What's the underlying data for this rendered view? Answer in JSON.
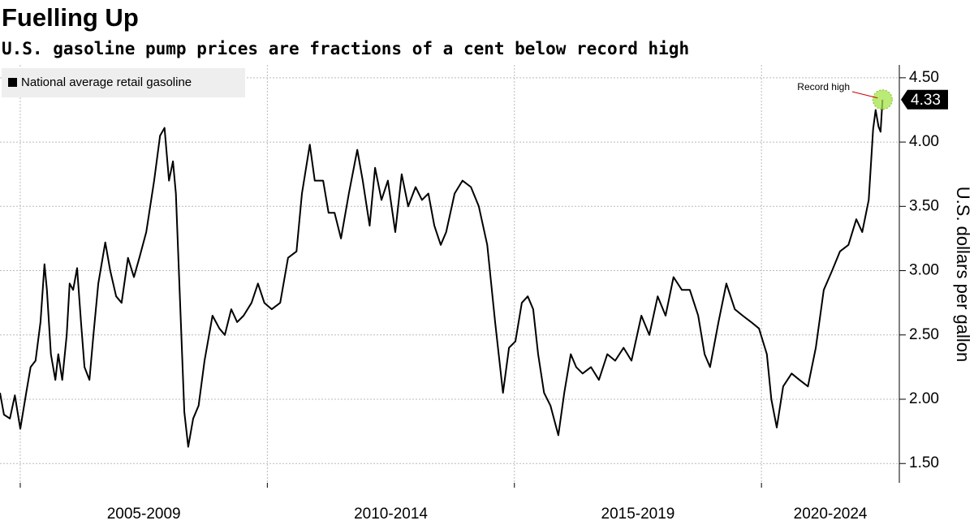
{
  "chart_data": {
    "type": "line",
    "title": "Fuelling Up",
    "subtitle": "U.S. gasoline pump prices are fractions of a cent below record high",
    "y_axis_label": "U.S. dollars per gallon",
    "legend": "top-left",
    "grid": true,
    "annotation": "Record high",
    "last_label": "4.33",
    "xlim": [
      2004.59,
      2022.79
    ],
    "ylim": [
      1.35,
      4.6
    ],
    "yticks": [
      {
        "value": 1.5,
        "label": "1.50"
      },
      {
        "value": 2.0,
        "label": "2.00"
      },
      {
        "value": 2.5,
        "label": "2.50"
      },
      {
        "value": 3.0,
        "label": "3.00"
      },
      {
        "value": 3.5,
        "label": "3.50"
      },
      {
        "value": 4.0,
        "label": "4.00"
      },
      {
        "value": 4.5,
        "label": "4.50"
      }
    ],
    "x_periods": [
      {
        "label": "2005-2009",
        "start": 2005,
        "end": 2010
      },
      {
        "label": "2010-2014",
        "start": 2010,
        "end": 2015
      },
      {
        "label": "2015-2019",
        "start": 2015,
        "end": 2020
      },
      {
        "label": "2020-2024",
        "start": 2020,
        "end": 2025
      }
    ],
    "x": [
      2004.59,
      2004.67,
      2004.79,
      2004.89,
      2005.0,
      2005.12,
      2005.21,
      2005.31,
      2005.41,
      2005.49,
      2005.54,
      2005.62,
      2005.71,
      2005.77,
      2005.85,
      2005.94,
      2006.0,
      2006.07,
      2006.15,
      2006.23,
      2006.3,
      2006.4,
      2006.48,
      2006.58,
      2006.72,
      2006.82,
      2006.94,
      2007.05,
      2007.18,
      2007.3,
      2007.41,
      2007.55,
      2007.71,
      2007.83,
      2007.92,
      2008.01,
      2008.09,
      2008.15,
      2008.24,
      2008.32,
      2008.4,
      2008.5,
      2008.61,
      2008.73,
      2008.89,
      2009.03,
      2009.14,
      2009.27,
      2009.39,
      2009.52,
      2009.68,
      2009.81,
      2009.94,
      2010.09,
      2010.26,
      2010.42,
      2010.59,
      2010.7,
      2010.86,
      2010.96,
      2011.13,
      2011.24,
      2011.36,
      2011.49,
      2011.65,
      2011.82,
      2011.93,
      2012.07,
      2012.18,
      2012.31,
      2012.44,
      2012.59,
      2012.72,
      2012.85,
      2013.0,
      2013.13,
      2013.26,
      2013.38,
      2013.51,
      2013.62,
      2013.79,
      2013.95,
      2014.12,
      2014.28,
      2014.45,
      2014.61,
      2014.77,
      2014.89,
      2015.02,
      2015.15,
      2015.27,
      2015.38,
      2015.48,
      2015.6,
      2015.73,
      2015.89,
      2016.01,
      2016.14,
      2016.25,
      2016.38,
      2016.55,
      2016.71,
      2016.88,
      2017.04,
      2017.21,
      2017.37,
      2017.57,
      2017.73,
      2017.9,
      2018.06,
      2018.22,
      2018.39,
      2018.55,
      2018.72,
      2018.85,
      2018.96,
      2019.13,
      2019.29,
      2019.46,
      2019.62,
      2019.79,
      2019.95,
      2020.11,
      2020.2,
      2020.31,
      2020.44,
      2020.61,
      2020.77,
      2020.94,
      2021.1,
      2021.26,
      2021.43,
      2021.59,
      2021.76,
      2021.92,
      2022.04,
      2022.17,
      2022.26,
      2022.31,
      2022.37,
      2022.41,
      2022.45
    ],
    "series": [
      {
        "name": "National average retail gasoline",
        "color": "#000000",
        "values": [
          2.05,
          1.88,
          1.85,
          2.03,
          1.77,
          2.05,
          2.25,
          2.3,
          2.6,
          3.05,
          2.85,
          2.35,
          2.15,
          2.35,
          2.15,
          2.5,
          2.9,
          2.85,
          3.02,
          2.6,
          2.25,
          2.15,
          2.5,
          2.9,
          3.22,
          3.0,
          2.8,
          2.75,
          3.1,
          2.95,
          3.1,
          3.3,
          3.7,
          4.05,
          4.11,
          3.7,
          3.85,
          3.6,
          2.7,
          1.9,
          1.63,
          1.85,
          1.95,
          2.3,
          2.65,
          2.55,
          2.5,
          2.7,
          2.6,
          2.65,
          2.75,
          2.9,
          2.75,
          2.7,
          2.75,
          3.1,
          3.15,
          3.6,
          3.98,
          3.7,
          3.7,
          3.45,
          3.45,
          3.25,
          3.6,
          3.94,
          3.7,
          3.35,
          3.8,
          3.55,
          3.7,
          3.3,
          3.75,
          3.5,
          3.65,
          3.55,
          3.6,
          3.35,
          3.2,
          3.3,
          3.6,
          3.7,
          3.65,
          3.5,
          3.2,
          2.6,
          2.05,
          2.4,
          2.45,
          2.75,
          2.8,
          2.7,
          2.35,
          2.05,
          1.95,
          1.72,
          2.05,
          2.35,
          2.25,
          2.2,
          2.25,
          2.15,
          2.35,
          2.3,
          2.4,
          2.3,
          2.65,
          2.5,
          2.8,
          2.65,
          2.95,
          2.85,
          2.85,
          2.65,
          2.35,
          2.25,
          2.6,
          2.9,
          2.7,
          2.65,
          2.6,
          2.55,
          2.35,
          2.0,
          1.78,
          2.1,
          2.2,
          2.15,
          2.1,
          2.4,
          2.85,
          3.0,
          3.15,
          3.2,
          3.4,
          3.3,
          3.55,
          4.1,
          4.25,
          4.12,
          4.08,
          4.33
        ]
      }
    ]
  }
}
